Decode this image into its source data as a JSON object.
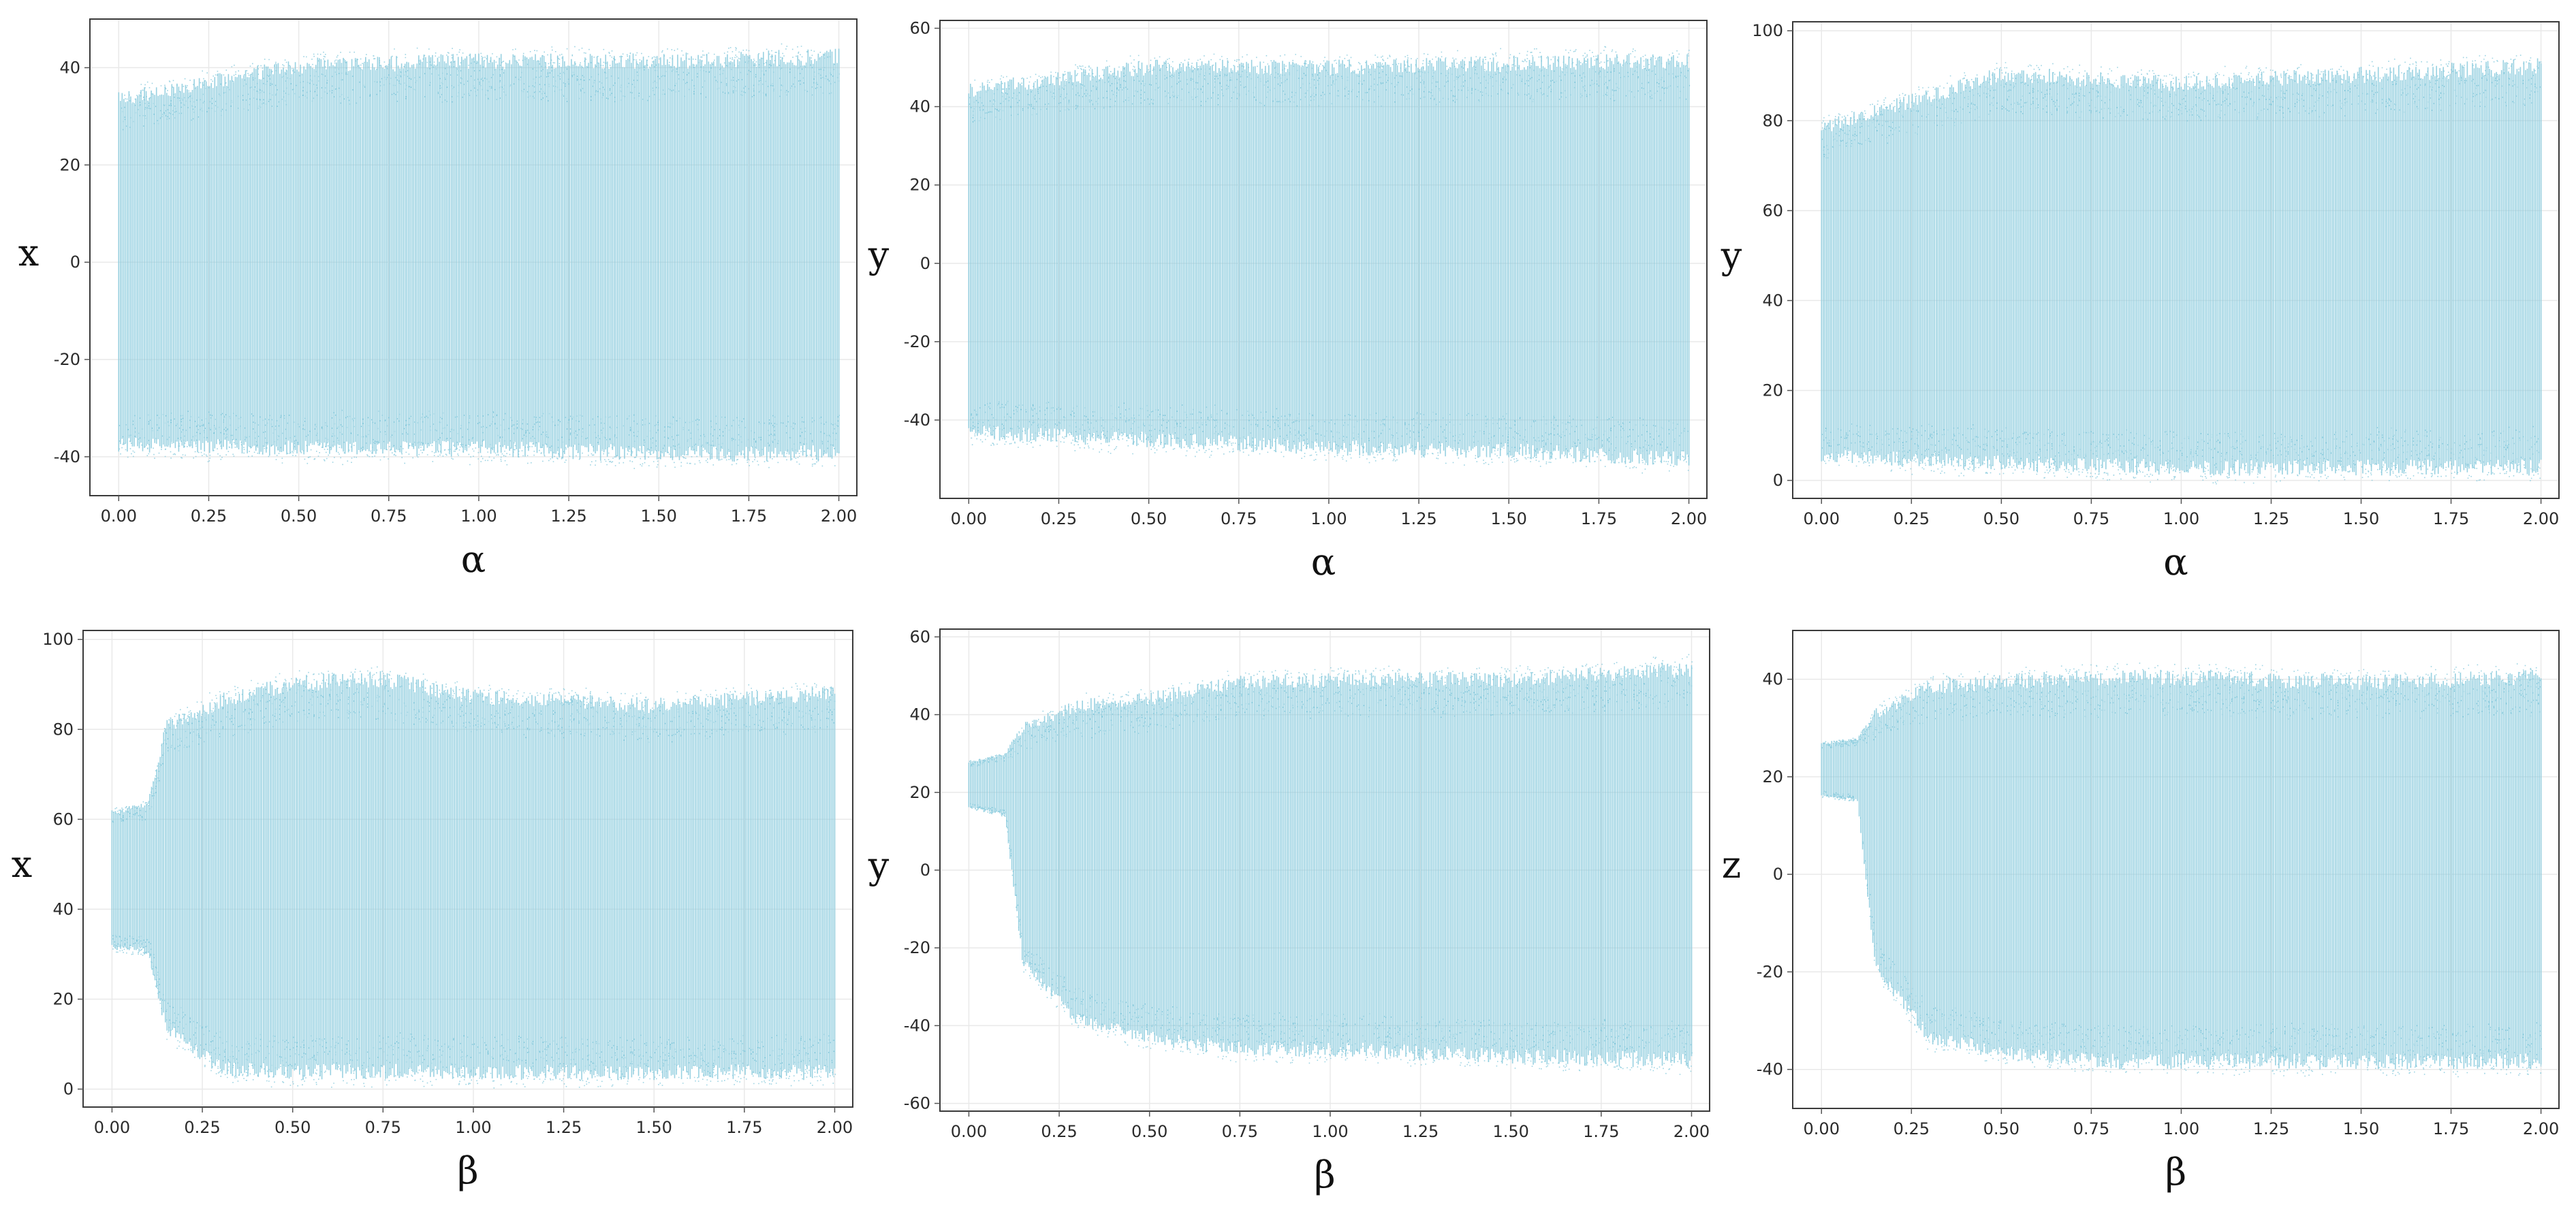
{
  "chart_data": [
    {
      "type": "bifurcation-scatter",
      "xlabel": "α",
      "ylabel": "x",
      "xlim": [
        -0.08,
        2.05
      ],
      "ylim": [
        -48,
        50
      ],
      "xticks": [
        "0.00",
        "0.25",
        "0.50",
        "0.75",
        "1.00",
        "1.25",
        "1.50",
        "1.75",
        "2.00"
      ],
      "yticks": [
        40,
        20,
        0,
        -20,
        -40
      ],
      "color": "#86c9dc",
      "envelope": {
        "x": [
          0.0,
          0.5,
          1.0,
          1.5,
          2.0
        ],
        "lower": [
          -39,
          -40,
          -40,
          -41,
          -41
        ],
        "upper": [
          35,
          42,
          43,
          43,
          44
        ]
      }
    },
    {
      "type": "bifurcation-scatter",
      "xlabel": "α",
      "ylabel": "y",
      "xlim": [
        -0.08,
        2.05
      ],
      "ylim": [
        -60,
        62
      ],
      "xticks": [
        "0.00",
        "0.25",
        "0.50",
        "0.75",
        "1.00",
        "1.25",
        "1.50",
        "1.75",
        "2.00"
      ],
      "yticks": [
        60,
        40,
        20,
        0,
        -20,
        -40
      ],
      "color": "#86c9dc",
      "envelope": {
        "x": [
          0.0,
          0.5,
          1.0,
          1.5,
          2.0
        ],
        "lower": [
          -45,
          -47,
          -49,
          -50,
          -52
        ],
        "upper": [
          46,
          52,
          52,
          53,
          54
        ]
      }
    },
    {
      "type": "bifurcation-scatter",
      "xlabel": "α",
      "ylabel": "y",
      "xlim": [
        -0.08,
        2.05
      ],
      "ylim": [
        -4,
        102
      ],
      "xticks": [
        "0.00",
        "0.25",
        "0.50",
        "0.75",
        "1.00",
        "1.25",
        "1.50",
        "1.75",
        "2.00"
      ],
      "yticks": [
        100,
        80,
        60,
        40,
        20,
        0
      ],
      "color": "#86c9dc",
      "envelope": {
        "x": [
          0.0,
          0.5,
          1.0,
          1.5,
          2.0
        ],
        "lower": [
          4,
          2,
          1,
          1,
          1
        ],
        "upper": [
          80,
          92,
          90,
          92,
          94
        ]
      }
    },
    {
      "type": "bifurcation-scatter",
      "xlabel": "β",
      "ylabel": "x",
      "xlim": [
        -0.08,
        2.05
      ],
      "ylim": [
        -4,
        102
      ],
      "xticks": [
        "0.00",
        "0.25",
        "0.50",
        "0.75",
        "1.00",
        "1.25",
        "1.50",
        "1.75",
        "2.00"
      ],
      "yticks": [
        100,
        80,
        60,
        40,
        20,
        0
      ],
      "color": "#86c9dc",
      "envelope": {
        "x": [
          0.0,
          0.1,
          0.15,
          0.3,
          0.5,
          0.75,
          1.0,
          1.5,
          2.0
        ],
        "lower": [
          31,
          30,
          12,
          3,
          2,
          2,
          2,
          2,
          2
        ],
        "upper": [
          62,
          64,
          82,
          88,
          92,
          93,
          89,
          87,
          90
        ]
      }
    },
    {
      "type": "bifurcation-scatter",
      "xlabel": "β",
      "ylabel": "y",
      "xlim": [
        -0.08,
        2.05
      ],
      "ylim": [
        -62,
        62
      ],
      "xticks": [
        "0.00",
        "0.25",
        "0.50",
        "0.75",
        "1.00",
        "1.25",
        "1.50",
        "1.75",
        "2.00"
      ],
      "yticks": [
        60,
        40,
        20,
        0,
        -20,
        -40,
        -60
      ],
      "color": "#86c9dc",
      "envelope": {
        "x": [
          0.0,
          0.1,
          0.15,
          0.3,
          0.5,
          0.75,
          1.0,
          1.5,
          2.0
        ],
        "lower": [
          16,
          14,
          -25,
          -40,
          -45,
          -48,
          -48,
          -50,
          -51
        ],
        "upper": [
          28,
          30,
          38,
          44,
          46,
          50,
          51,
          51,
          54
        ]
      }
    },
    {
      "type": "bifurcation-scatter",
      "xlabel": "β",
      "ylabel": "z",
      "xlim": [
        -0.08,
        2.05
      ],
      "ylim": [
        -48,
        50
      ],
      "xticks": [
        "0.00",
        "0.25",
        "0.50",
        "0.75",
        "1.00",
        "1.25",
        "1.50",
        "1.75",
        "2.00"
      ],
      "yticks": [
        40,
        20,
        0,
        -20,
        -40
      ],
      "color": "#86c9dc",
      "envelope": {
        "x": [
          0.0,
          0.1,
          0.15,
          0.3,
          0.5,
          0.75,
          1.0,
          1.5,
          2.0
        ],
        "lower": [
          16,
          15,
          -20,
          -35,
          -38,
          -40,
          -40,
          -40,
          -40
        ],
        "upper": [
          27,
          28,
          34,
          40,
          41,
          42,
          42,
          41,
          42
        ]
      }
    }
  ]
}
